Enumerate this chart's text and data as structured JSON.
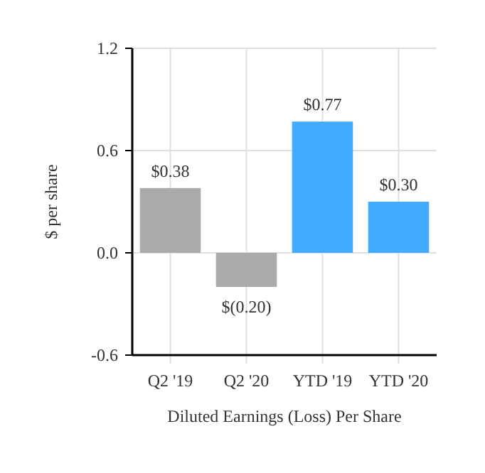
{
  "chart_data": {
    "type": "bar",
    "xlabel": "Diluted Earnings (Loss) Per Share",
    "ylabel": "$ per share",
    "categories": [
      "Q2 '19",
      "Q2 '20",
      "YTD '19",
      "YTD '20"
    ],
    "values": [
      0.38,
      -0.2,
      0.77,
      0.3
    ],
    "colors": [
      "#aaaaaa",
      "#aaaaaa",
      "#42aaff",
      "#42aaff"
    ],
    "value_labels": [
      "$0.38",
      "$(0.20)",
      "$0.77",
      "$0.30"
    ],
    "ylim": [
      -0.6,
      1.2
    ],
    "yticks": [
      {
        "value": -0.6,
        "label": "-0.6"
      },
      {
        "value": 0,
        "label": "0.0"
      },
      {
        "value": 0.6,
        "label": "0.6"
      },
      {
        "value": 1.2,
        "label": "1.2"
      }
    ],
    "grid": true
  }
}
